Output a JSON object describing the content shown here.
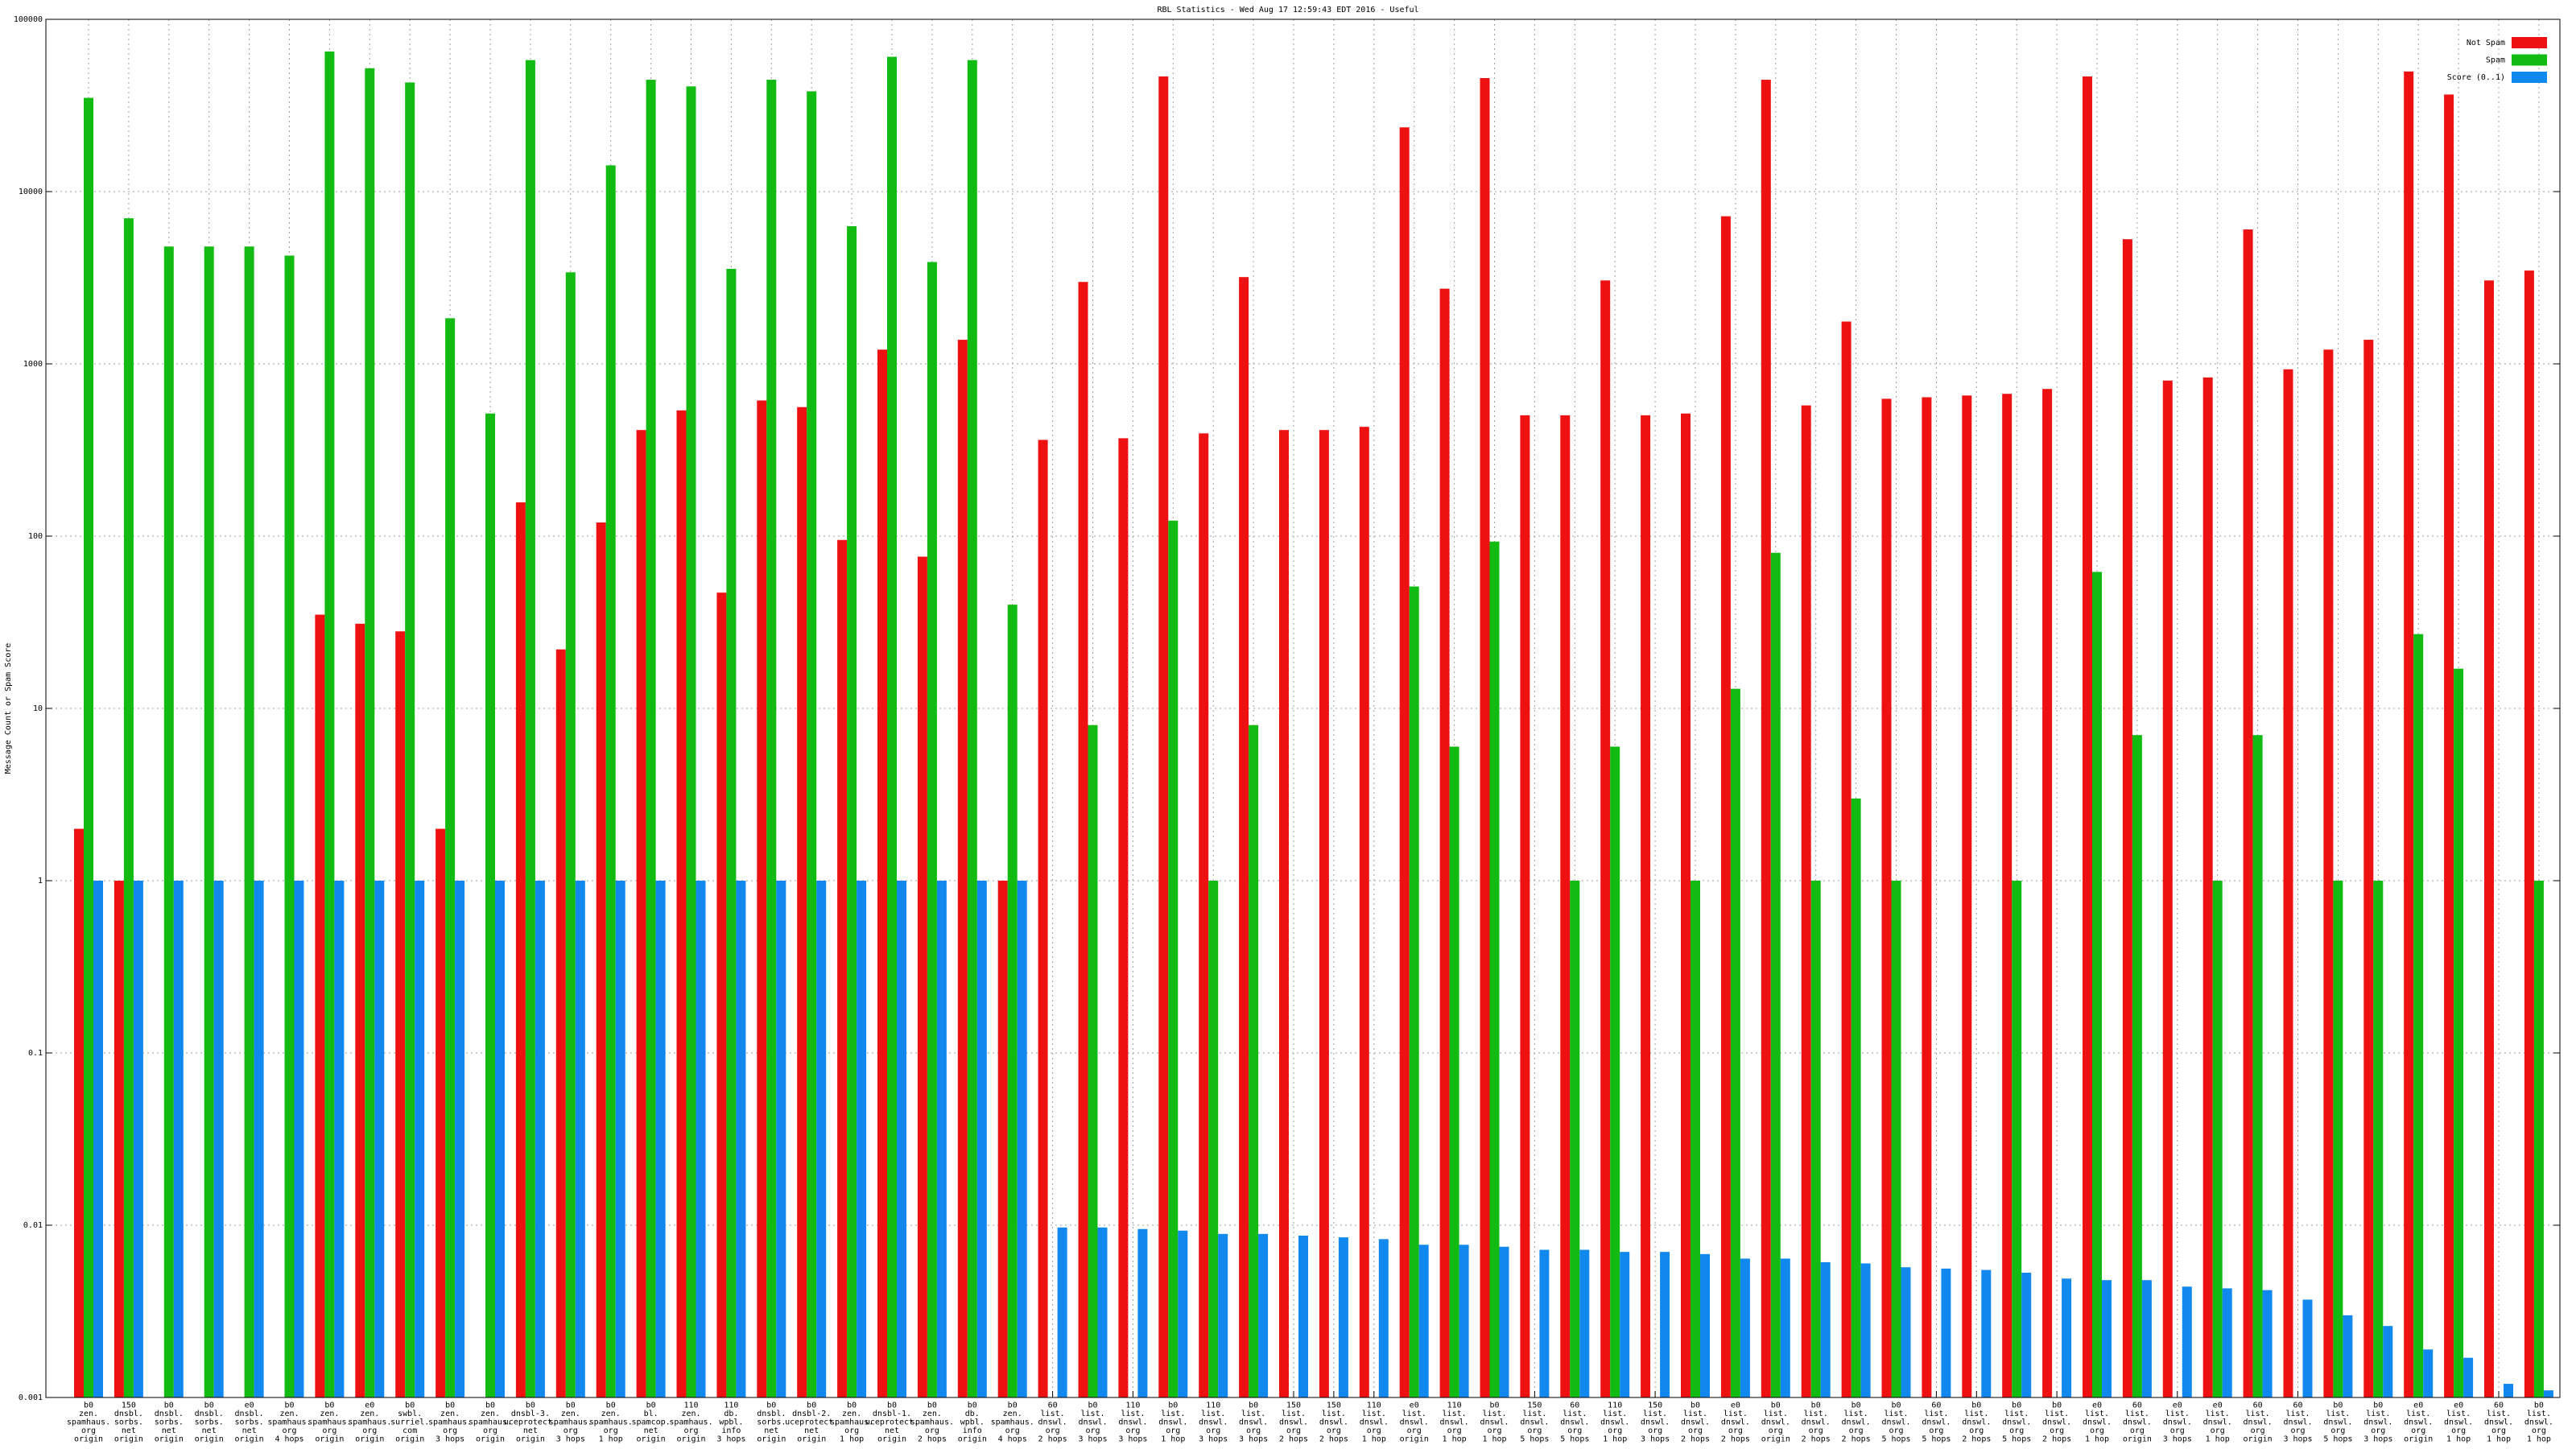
{
  "chart_data": {
    "type": "bar",
    "title": "RBL Statistics - Wed Aug 17 12:59:43 EDT 2016 - Useful",
    "y_label": "Message Count or Spam Score",
    "log_scale": true,
    "grid": true,
    "legend_position": "top-right",
    "ylim": [
      0.001,
      100000
    ],
    "yticks": [
      0.001,
      0.01,
      0.1,
      1,
      10,
      100,
      1000,
      10000,
      100000
    ],
    "categories": [
      [
        "b0",
        "zen.",
        "spamhaus.",
        "org",
        "origin"
      ],
      [
        "150",
        "dnsbl.",
        "sorbs.",
        "net",
        "origin"
      ],
      [
        "b0",
        "dnsbl.",
        "sorbs.",
        "net",
        "origin"
      ],
      [
        "b0",
        "dnsbl.",
        "sorbs.",
        "net",
        "origin"
      ],
      [
        "e0",
        "dnsbl.",
        "sorbs.",
        "net",
        "origin"
      ],
      [
        "b0",
        "zen.",
        "spamhaus.",
        "org",
        "4 hops"
      ],
      [
        "b0",
        "zen.",
        "spamhaus.",
        "org",
        "origin"
      ],
      [
        "e0",
        "zen.",
        "spamhaus.",
        "org",
        "origin"
      ],
      [
        "b0",
        "swbl.",
        "surriel.",
        "com",
        "origin"
      ],
      [
        "b0",
        "zen.",
        "spamhaus.",
        "org",
        "3 hops"
      ],
      [
        "b0",
        "zen.",
        "spamhaus.",
        "org",
        "origin"
      ],
      [
        "b0",
        "dnsbl-3.",
        "uceprotect.",
        "net",
        "origin"
      ],
      [
        "b0",
        "zen.",
        "spamhaus.",
        "org",
        "3 hops"
      ],
      [
        "b0",
        "zen.",
        "spamhaus.",
        "org",
        "1 hop"
      ],
      [
        "b0",
        "bl.",
        "spamcop.",
        "net",
        "origin"
      ],
      [
        "110",
        "zen.",
        "spamhaus.",
        "org",
        "origin"
      ],
      [
        "110",
        "db.",
        "wpbl.",
        "info",
        "3 hops"
      ],
      [
        "b0",
        "dnsbl.",
        "sorbs.",
        "net",
        "origin"
      ],
      [
        "b0",
        "dnsbl-2.",
        "uceprotect.",
        "net",
        "origin"
      ],
      [
        "b0",
        "zen.",
        "spamhaus.",
        "org",
        "1 hop"
      ],
      [
        "b0",
        "dnsbl-1.",
        "uceprotect.",
        "net",
        "origin"
      ],
      [
        "b0",
        "zen.",
        "spamhaus.",
        "org",
        "2 hops"
      ],
      [
        "b0",
        "db.",
        "wpbl.",
        "info",
        "origin"
      ],
      [
        "b0",
        "zen.",
        "spamhaus.",
        "org",
        "4 hops"
      ],
      [
        "60",
        "list.",
        "dnswl.",
        "org",
        "2 hops"
      ],
      [
        "b0",
        "list.",
        "dnswl.",
        "org",
        "3 hops"
      ],
      [
        "110",
        "list.",
        "dnswl.",
        "org",
        "3 hops"
      ],
      [
        "b0",
        "list.",
        "dnswl.",
        "org",
        "1 hop"
      ],
      [
        "110",
        "list.",
        "dnswl.",
        "org",
        "3 hops"
      ],
      [
        "b0",
        "list.",
        "dnswl.",
        "org",
        "3 hops"
      ],
      [
        "150",
        "list.",
        "dnswl.",
        "org",
        "2 hops"
      ],
      [
        "150",
        "list.",
        "dnswl.",
        "org",
        "2 hops"
      ],
      [
        "110",
        "list.",
        "dnswl.",
        "org",
        "1 hop"
      ],
      [
        "e0",
        "list.",
        "dnswl.",
        "org",
        "origin"
      ],
      [
        "110",
        "list.",
        "dnswl.",
        "org",
        "1 hop"
      ],
      [
        "b0",
        "list.",
        "dnswl.",
        "org",
        "1 hop"
      ],
      [
        "150",
        "list.",
        "dnswl.",
        "org",
        "5 hops"
      ],
      [
        "60",
        "list.",
        "dnswl.",
        "org",
        "5 hops"
      ],
      [
        "110",
        "list.",
        "dnswl.",
        "org",
        "1 hop"
      ],
      [
        "150",
        "list.",
        "dnswl.",
        "org",
        "3 hops"
      ],
      [
        "b0",
        "list.",
        "dnswl.",
        "org",
        "2 hops"
      ],
      [
        "e0",
        "list.",
        "dnswl.",
        "org",
        "2 hops"
      ],
      [
        "b0",
        "list.",
        "dnswl.",
        "org",
        "origin"
      ],
      [
        "b0",
        "list.",
        "dnswl.",
        "org",
        "2 hops"
      ],
      [
        "b0",
        "list.",
        "dnswl.",
        "org",
        "2 hops"
      ],
      [
        "b0",
        "list.",
        "dnswl.",
        "org",
        "5 hops"
      ],
      [
        "60",
        "list.",
        "dnswl.",
        "org",
        "5 hops"
      ],
      [
        "b0",
        "list.",
        "dnswl.",
        "org",
        "2 hops"
      ],
      [
        "b0",
        "list.",
        "dnswl.",
        "org",
        "5 hops"
      ],
      [
        "b0",
        "list.",
        "dnswl.",
        "org",
        "2 hops"
      ],
      [
        "e0",
        "list.",
        "dnswl.",
        "org",
        "1 hop"
      ],
      [
        "60",
        "list.",
        "dnswl.",
        "org",
        "origin"
      ],
      [
        "e0",
        "list.",
        "dnswl.",
        "org",
        "3 hops"
      ],
      [
        "e0",
        "list.",
        "dnswl.",
        "org",
        "1 hop"
      ],
      [
        "60",
        "list.",
        "dnswl.",
        "org",
        "origin"
      ],
      [
        "60",
        "list.",
        "dnswl.",
        "org",
        "3 hops"
      ],
      [
        "b0",
        "list.",
        "dnswl.",
        "org",
        "5 hops"
      ],
      [
        "b0",
        "list.",
        "dnswl.",
        "org",
        "3 hops"
      ],
      [
        "e0",
        "list.",
        "dnswl.",
        "org",
        "origin"
      ],
      [
        "e0",
        "list.",
        "dnswl.",
        "org",
        "1 hop"
      ],
      [
        "60",
        "list.",
        "dnswl.",
        "org",
        "1 hop"
      ],
      [
        "b0",
        "list.",
        "dnswl.",
        "org",
        "1 hop"
      ]
    ],
    "series": [
      {
        "name": "Not Spam",
        "color": "#ee1111",
        "values": [
          2,
          1,
          null,
          null,
          null,
          null,
          35,
          31,
          28,
          2,
          null,
          157,
          22,
          120,
          413,
          537,
          47,
          613,
          561,
          95,
          1210,
          76,
          1380,
          1,
          362,
          2990,
          370,
          46600,
          395,
          3190,
          413,
          413,
          431,
          23600,
          2730,
          45600,
          503,
          503,
          3050,
          503,
          515,
          7190,
          44600,
          574,
          1760,
          627,
          640,
          655,
          670,
          715,
          46600,
          5290,
          800,
          834,
          6030,
          930,
          1210,
          1380,
          49800,
          36600,
          3050,
          3480
        ]
      },
      {
        "name": "Spam",
        "color": "#11bb11",
        "values": [
          35000,
          7000,
          4800,
          4800,
          4800,
          4250,
          65000,
          52000,
          43000,
          1840,
          515,
          58000,
          3400,
          14200,
          44600,
          40800,
          3560,
          44600,
          38200,
          6300,
          60600,
          3900,
          58000,
          40,
          null,
          8,
          null,
          123,
          1,
          8,
          null,
          null,
          null,
          51,
          6,
          93,
          null,
          1,
          6,
          null,
          1,
          13,
          80,
          1,
          3,
          1,
          null,
          null,
          1,
          null,
          62,
          7,
          null,
          1,
          7,
          null,
          1,
          1,
          27,
          17,
          null,
          1
        ]
      },
      {
        "name": "Score (0..1)",
        "color": "#1188ee",
        "values": [
          1,
          1,
          1,
          1,
          1,
          1,
          1,
          1,
          1,
          1,
          1,
          1,
          1,
          1,
          1,
          1,
          1,
          1,
          1,
          1,
          1,
          1,
          1,
          1,
          0.0097,
          0.0097,
          0.0095,
          0.0093,
          0.0089,
          0.0089,
          0.0087,
          0.0085,
          0.0083,
          0.0077,
          0.0077,
          0.0075,
          0.0072,
          0.0072,
          0.007,
          0.007,
          0.0068,
          0.0064,
          0.0064,
          0.0061,
          0.006,
          0.0057,
          0.0056,
          0.0055,
          0.0053,
          0.0049,
          0.0048,
          0.0048,
          0.0044,
          0.0043,
          0.0042,
          0.0037,
          0.003,
          0.0026,
          0.0019,
          0.0017,
          0.0012,
          0.0011
        ]
      }
    ]
  }
}
